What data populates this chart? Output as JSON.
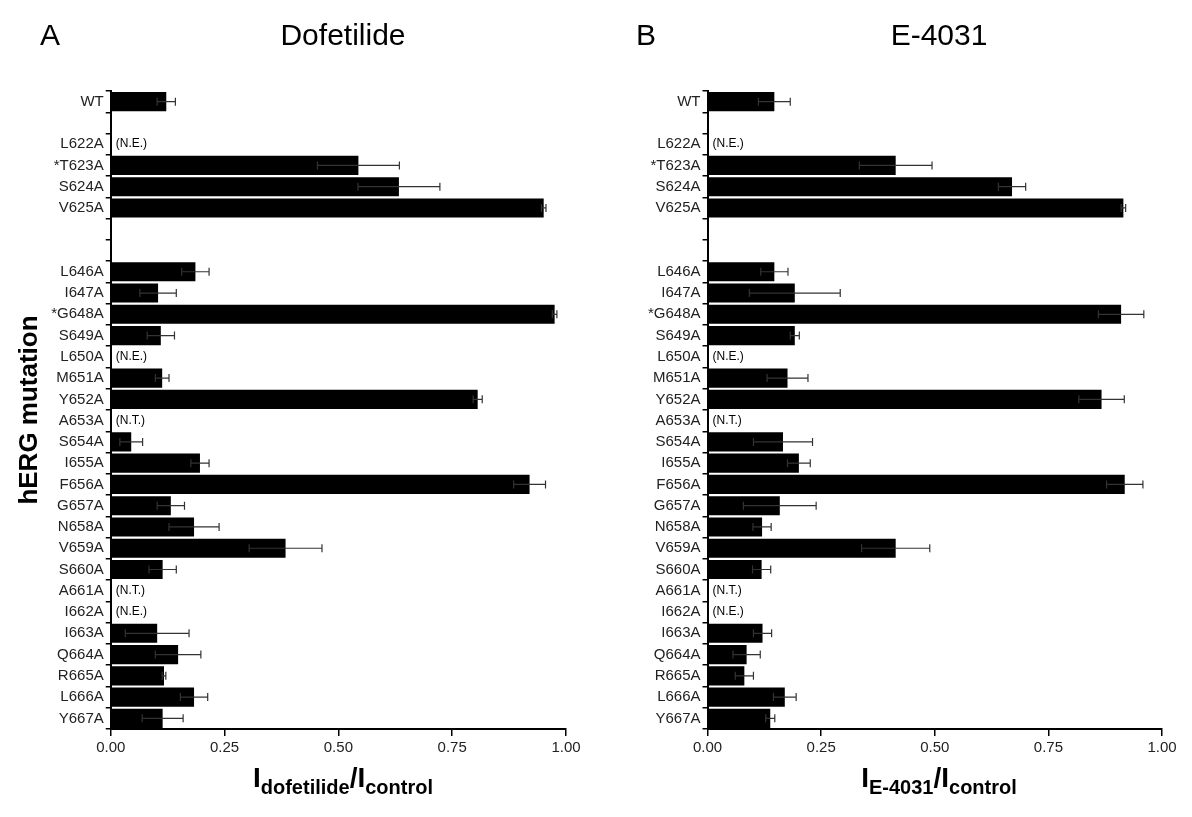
{
  "chart_data": [
    {
      "type": "bar",
      "orientation": "horizontal",
      "title": "Dofetilide",
      "xlabel": "I$_{dofetilide}$/I$_{control}$",
      "ylabel": "hERG mutation",
      "color": "#000000",
      "categories": [
        "WT",
        null,
        "L622A",
        "*T623A",
        "S624A",
        "V625A",
        null,
        null,
        "L646A",
        "I647A",
        "*G648A",
        "S649A",
        "L650A",
        "M651A",
        "Y652A",
        "A653A",
        "S654A",
        "I655A",
        "F656A",
        "G657A",
        "N658A",
        "V659A",
        "S660A",
        "A661A",
        "I662A",
        "I663A",
        "Q664A",
        "R665A",
        "L666A",
        "Y667A"
      ],
      "values": [
        0.122,
        null,
        null,
        0.544,
        0.633,
        0.951,
        null,
        null,
        0.186,
        0.104,
        0.975,
        0.11,
        null,
        0.113,
        0.806,
        null,
        0.045,
        0.196,
        0.92,
        0.132,
        0.183,
        0.384,
        0.114,
        null,
        null,
        0.102,
        0.148,
        0.117,
        0.183,
        0.114
      ],
      "errors": [
        0.02,
        null,
        null,
        0.09,
        0.09,
        0.005,
        null,
        null,
        0.03,
        0.04,
        0.005,
        0.03,
        null,
        0.015,
        0.01,
        null,
        0.025,
        0.02,
        0.035,
        0.03,
        0.055,
        0.08,
        0.03,
        null,
        null,
        0.07,
        0.05,
        0.004,
        0.03,
        0.045
      ],
      "xlim": [
        0,
        1
      ],
      "xticks": [
        {
          "value": 0,
          "label": "0.00"
        },
        {
          "value": 0.25,
          "label": "0.25"
        },
        {
          "value": 0.5,
          "label": "0.50"
        },
        {
          "value": 0.75,
          "label": "0.75"
        },
        {
          "value": 1,
          "label": "1.00"
        }
      ],
      "value_labels": [
        null,
        null,
        "(N.E.)",
        null,
        null,
        null,
        null,
        null,
        null,
        null,
        null,
        null,
        "(N.E.)",
        null,
        null,
        "(N.T.)",
        null,
        null,
        null,
        null,
        null,
        null,
        null,
        "(N.T.)",
        "(N.E.)",
        null,
        null,
        null,
        null,
        null
      ],
      "annotations": [
        "A"
      ]
    },
    {
      "type": "bar",
      "orientation": "horizontal",
      "title": "E-4031",
      "xlabel": "I$_{E-4031}$/I$_{control}$",
      "color": "#000000",
      "categories": [
        "WT",
        null,
        "L622A",
        "*T623A",
        "S624A",
        "V625A",
        null,
        null,
        "L646A",
        "I647A",
        "*G648A",
        "S649A",
        "L650A",
        "M651A",
        "Y652A",
        "A653A",
        "S654A",
        "I655A",
        "F656A",
        "G657A",
        "N658A",
        "V659A",
        "S660A",
        "A661A",
        "I662A",
        "I663A",
        "Q664A",
        "R665A",
        "L666A",
        "Y667A"
      ],
      "values": [
        0.147,
        null,
        null,
        0.414,
        0.67,
        0.915,
        null,
        null,
        0.147,
        0.192,
        0.91,
        0.192,
        null,
        0.176,
        0.867,
        null,
        0.166,
        0.201,
        0.918,
        0.159,
        0.12,
        0.414,
        0.119,
        null,
        null,
        0.121,
        0.086,
        0.081,
        0.17,
        0.138
      ],
      "errors": [
        0.035,
        null,
        null,
        0.08,
        0.03,
        0.005,
        null,
        null,
        0.03,
        0.1,
        0.05,
        0.01,
        null,
        0.045,
        0.05,
        null,
        0.065,
        0.025,
        0.04,
        0.08,
        0.02,
        0.075,
        0.02,
        null,
        null,
        0.02,
        0.03,
        0.02,
        0.025,
        0.01
      ],
      "xlim": [
        0,
        1
      ],
      "xticks": [
        {
          "value": 0,
          "label": "0.00"
        },
        {
          "value": 0.25,
          "label": "0.25"
        },
        {
          "value": 0.5,
          "label": "0.50"
        },
        {
          "value": 0.75,
          "label": "0.75"
        },
        {
          "value": 1,
          "label": "1.00"
        }
      ],
      "value_labels": [
        null,
        null,
        "(N.E.)",
        null,
        null,
        null,
        null,
        null,
        null,
        null,
        null,
        null,
        "(N.E.)",
        null,
        null,
        "(N.T.)",
        null,
        null,
        null,
        null,
        null,
        null,
        null,
        "(N.T.)",
        "(N.E.)",
        null,
        null,
        null,
        null,
        null
      ],
      "annotations": [
        "B"
      ]
    }
  ]
}
